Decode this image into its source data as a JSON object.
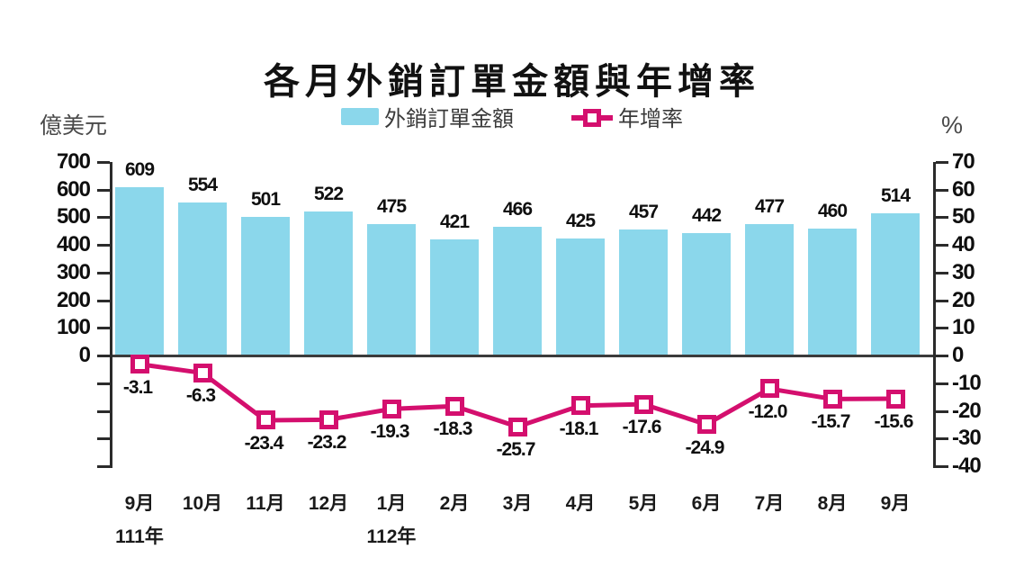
{
  "chart_data": {
    "type": "bar+line",
    "title": "各月外銷訂單金額與年增率",
    "legend": [
      {
        "label": "外銷訂單金額",
        "kind": "bar",
        "color": "#8BD7EB"
      },
      {
        "label": "年增率",
        "kind": "line",
        "color": "#D40F6E"
      }
    ],
    "categories": [
      "9月",
      "10月",
      "11月",
      "12月",
      "1月",
      "2月",
      "3月",
      "4月",
      "5月",
      "6月",
      "7月",
      "8月",
      "9月"
    ],
    "year_markers": [
      {
        "category_index": 0,
        "label": "111年"
      },
      {
        "category_index": 4,
        "label": "112年"
      }
    ],
    "series": [
      {
        "name": "外銷訂單金額",
        "type": "bar",
        "axis": "left",
        "color": "#8BD7EB",
        "values": [
          609,
          554,
          501,
          522,
          475,
          421,
          466,
          425,
          457,
          442,
          477,
          460,
          514
        ],
        "value_labels": [
          "609",
          "554",
          "501",
          "522",
          "475",
          "421",
          "466",
          "425",
          "457",
          "442",
          "477",
          "460",
          "514"
        ]
      },
      {
        "name": "年增率",
        "type": "line",
        "axis": "right",
        "color": "#D40F6E",
        "values": [
          -3.1,
          -6.3,
          -23.4,
          -23.2,
          -19.3,
          -18.3,
          -25.7,
          -18.1,
          -17.6,
          -24.9,
          -12.0,
          -15.7,
          -15.6
        ],
        "value_labels": [
          "-3.1",
          "-6.3",
          "-23.4",
          "-23.2",
          "-19.3",
          "-18.3",
          "-25.7",
          "-18.1",
          "-17.6",
          "-24.9",
          "-12.0",
          "-15.7",
          "-15.6"
        ]
      }
    ],
    "left_axis": {
      "unit": "億美元",
      "min": 0,
      "max": 700,
      "step": 100,
      "tick_labels": [
        "700",
        "600",
        "500",
        "400",
        "300",
        "200",
        "100",
        "0"
      ],
      "unlabeled_negative_ticks": 4
    },
    "right_axis": {
      "unit": "%",
      "min": -40,
      "max": 70,
      "step": 10,
      "tick_labels": [
        "70",
        "60",
        "50",
        "40",
        "30",
        "20",
        "10",
        "0",
        "-10",
        "-20",
        "-30",
        "-40"
      ]
    },
    "grid": "off",
    "legend_position": "top-center"
  }
}
